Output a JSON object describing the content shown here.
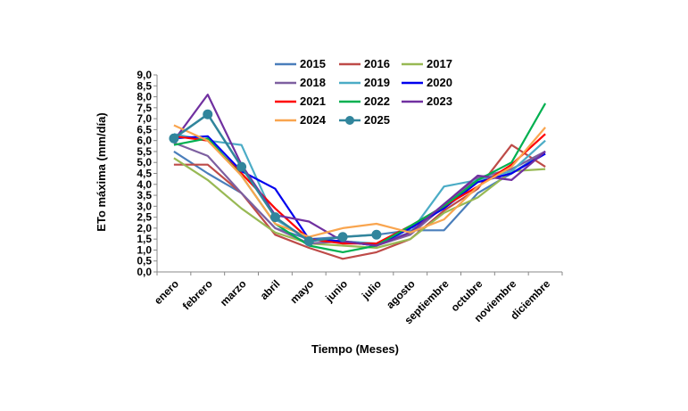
{
  "chart_data": {
    "type": "line",
    "title": "",
    "xlabel": "Tiempo (Meses)",
    "ylabel": "ETo máxima (mm/día)",
    "ylim": [
      0,
      9
    ],
    "ytick_step": 0.5,
    "yticks": [
      "0,0",
      "0,5",
      "1,0",
      "1,5",
      "2,0",
      "2,5",
      "3,0",
      "3,5",
      "4,0",
      "4,5",
      "5,0",
      "5,5",
      "6,0",
      "6,5",
      "7,0",
      "7,5",
      "8,0",
      "8,5",
      "9,0"
    ],
    "grid": false,
    "legend_position": "top-center",
    "categories": [
      "enero",
      "febrero",
      "marzo",
      "abril",
      "mayo",
      "junio",
      "julio",
      "agosto",
      "septiembre",
      "octubre",
      "noviembre",
      "diciembre"
    ],
    "series": [
      {
        "name": "2015",
        "color": "#4a7ebb",
        "marker": "none",
        "values": [
          5.5,
          4.5,
          3.6,
          2.0,
          1.5,
          1.6,
          1.7,
          1.9,
          1.9,
          3.6,
          4.5,
          5.5
        ]
      },
      {
        "name": "2016",
        "color": "#be4b48",
        "marker": "none",
        "values": [
          4.9,
          4.9,
          3.6,
          1.7,
          1.1,
          0.6,
          0.9,
          1.5,
          2.8,
          3.8,
          5.8,
          4.8
        ]
      },
      {
        "name": "2017",
        "color": "#98b954",
        "marker": "none",
        "values": [
          5.2,
          4.2,
          2.9,
          1.8,
          1.3,
          1.2,
          1.1,
          1.5,
          2.7,
          3.4,
          4.6,
          4.7
        ]
      },
      {
        "name": "2018",
        "color": "#7d5fa0",
        "marker": "none",
        "values": [
          5.9,
          5.3,
          3.6,
          2.0,
          1.3,
          1.4,
          1.2,
          1.7,
          3.0,
          4.3,
          4.7,
          5.5
        ]
      },
      {
        "name": "2019",
        "color": "#4bacc6",
        "marker": "none",
        "values": [
          6.3,
          6.0,
          5.8,
          2.4,
          1.5,
          1.4,
          1.3,
          1.8,
          3.9,
          4.2,
          4.6,
          6.0
        ]
      },
      {
        "name": "2020",
        "color": "#0000ee",
        "marker": "none",
        "values": [
          6.1,
          6.2,
          4.6,
          3.8,
          1.5,
          1.4,
          1.2,
          2.0,
          2.9,
          4.1,
          4.5,
          5.4
        ]
      },
      {
        "name": "2021",
        "color": "#ff0000",
        "marker": "none",
        "values": [
          6.2,
          6.0,
          4.5,
          2.9,
          1.5,
          1.3,
          1.3,
          2.1,
          3.0,
          3.9,
          4.9,
          6.3
        ]
      },
      {
        "name": "2022",
        "color": "#00b050",
        "marker": "none",
        "values": [
          5.8,
          6.1,
          4.4,
          2.2,
          1.2,
          0.9,
          1.2,
          2.1,
          3.0,
          4.2,
          5.0,
          7.7
        ]
      },
      {
        "name": "2023",
        "color": "#7030a0",
        "marker": "none",
        "values": [
          6.0,
          8.1,
          4.9,
          2.6,
          2.3,
          1.4,
          1.2,
          1.8,
          3.1,
          4.4,
          4.2,
          5.5
        ]
      },
      {
        "name": "2024",
        "color": "#f9a54f",
        "marker": "none",
        "values": [
          6.7,
          6.0,
          4.4,
          2.2,
          1.6,
          2.0,
          2.2,
          1.8,
          2.4,
          3.9,
          4.8,
          6.6
        ]
      },
      {
        "name": "2025",
        "color": "#31859c",
        "marker": "circle",
        "values": [
          6.1,
          7.2,
          4.8,
          2.5,
          1.4,
          1.6,
          1.7,
          null,
          null,
          null,
          null,
          null
        ]
      }
    ]
  }
}
